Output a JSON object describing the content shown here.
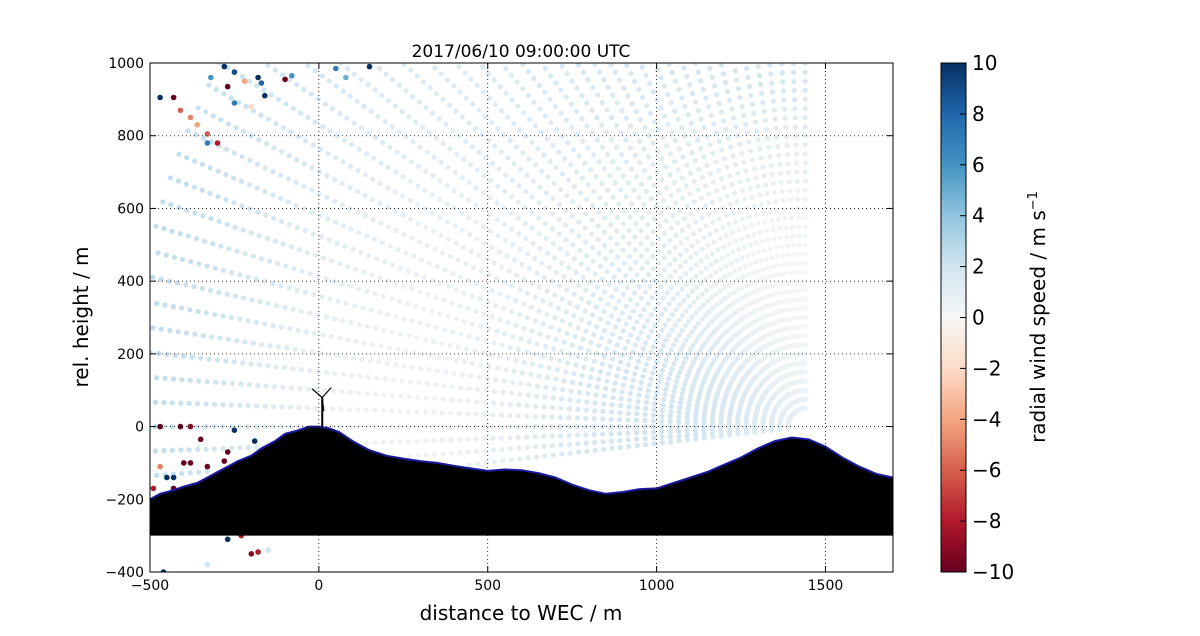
{
  "chart_data": {
    "type": "scatter",
    "title": "2017/06/10 09:00:00 UTC",
    "xlabel": "distance to WEC / m",
    "ylabel": "rel. height / m",
    "xlim": [
      -500,
      1700
    ],
    "ylim": [
      -400,
      1000
    ],
    "xticks": [
      "−500",
      "0",
      "500",
      "1000",
      "1500"
    ],
    "yticks": [
      "−400",
      "−200",
      "0",
      "200",
      "400",
      "600",
      "800",
      "1000"
    ],
    "xtick_values": [
      -500,
      0,
      500,
      1000,
      1500
    ],
    "ytick_values": [
      -400,
      -200,
      0,
      200,
      400,
      600,
      800,
      1000
    ],
    "grid": true,
    "grid_style": "dotted",
    "scan": {
      "description_values": "lidar RHI scan points, radial wind speed in m/s",
      "origin": [
        1440,
        0
      ],
      "range_gate_start": 50,
      "range_gate_step": 25,
      "range_gate_end": 2000,
      "ray_angles_deg": [
        90,
        88,
        86,
        84,
        82,
        80,
        78,
        76,
        74,
        72,
        70,
        68,
        66,
        64,
        62,
        60,
        58,
        56,
        54,
        52,
        50,
        48,
        46,
        44,
        42,
        40,
        38,
        36,
        34,
        32,
        30,
        28,
        26,
        24,
        22,
        20,
        18,
        16,
        14,
        12,
        10,
        8,
        6,
        4,
        2,
        0,
        -2,
        -4,
        -6
      ],
      "typical_speed": 1.5
    },
    "outliers": [
      {
        "x": -470,
        "y": 905,
        "v": 10
      },
      {
        "x": -430,
        "y": 905,
        "v": -10
      },
      {
        "x": -410,
        "y": 870,
        "v": -6
      },
      {
        "x": -380,
        "y": 850,
        "v": -5
      },
      {
        "x": -360,
        "y": 830,
        "v": -4
      },
      {
        "x": -330,
        "y": 805,
        "v": -6
      },
      {
        "x": -300,
        "y": 780,
        "v": -8
      },
      {
        "x": -330,
        "y": 780,
        "v": 7
      },
      {
        "x": -280,
        "y": 990,
        "v": 10
      },
      {
        "x": -250,
        "y": 975,
        "v": 9
      },
      {
        "x": -320,
        "y": 960,
        "v": 6
      },
      {
        "x": -220,
        "y": 950,
        "v": -4
      },
      {
        "x": -270,
        "y": 935,
        "v": -10
      },
      {
        "x": -180,
        "y": 960,
        "v": 10
      },
      {
        "x": -170,
        "y": 945,
        "v": 8
      },
      {
        "x": -100,
        "y": 955,
        "v": -10
      },
      {
        "x": -80,
        "y": 965,
        "v": 6
      },
      {
        "x": 50,
        "y": 985,
        "v": 7
      },
      {
        "x": 80,
        "y": 960,
        "v": 5
      },
      {
        "x": 150,
        "y": 990,
        "v": 10
      },
      {
        "x": -160,
        "y": 910,
        "v": 10
      },
      {
        "x": -250,
        "y": 890,
        "v": 7
      },
      {
        "x": -200,
        "y": 880,
        "v": -2
      },
      {
        "x": -470,
        "y": 0,
        "v": -10
      },
      {
        "x": -410,
        "y": 0,
        "v": -10
      },
      {
        "x": -380,
        "y": 0,
        "v": -9
      },
      {
        "x": -350,
        "y": -35,
        "v": -10
      },
      {
        "x": -250,
        "y": -10,
        "v": 10
      },
      {
        "x": -190,
        "y": -40,
        "v": 10
      },
      {
        "x": -270,
        "y": -70,
        "v": -10
      },
      {
        "x": -280,
        "y": -95,
        "v": -10
      },
      {
        "x": -400,
        "y": -100,
        "v": -10
      },
      {
        "x": -380,
        "y": -100,
        "v": -10
      },
      {
        "x": -330,
        "y": -110,
        "v": -10
      },
      {
        "x": -470,
        "y": -110,
        "v": -5
      },
      {
        "x": -450,
        "y": -140,
        "v": 10
      },
      {
        "x": -430,
        "y": -140,
        "v": 10
      },
      {
        "x": -300,
        "y": -135,
        "v": -10
      },
      {
        "x": -490,
        "y": -170,
        "v": -8
      },
      {
        "x": -430,
        "y": -170,
        "v": -10
      },
      {
        "x": -270,
        "y": -310,
        "v": 10
      },
      {
        "x": -230,
        "y": -300,
        "v": -8
      },
      {
        "x": -200,
        "y": -350,
        "v": -9
      },
      {
        "x": -180,
        "y": -345,
        "v": -8
      },
      {
        "x": -150,
        "y": -340,
        "v": 2
      },
      {
        "x": -330,
        "y": -380,
        "v": 2
      },
      {
        "x": -460,
        "y": -400,
        "v": 10
      }
    ],
    "terrain": {
      "x": [
        -500,
        -470,
        -430,
        -400,
        -360,
        -330,
        -300,
        -270,
        -240,
        -200,
        -170,
        -130,
        -100,
        -60,
        -30,
        0,
        30,
        60,
        100,
        150,
        200,
        250,
        300,
        350,
        400,
        450,
        500,
        550,
        600,
        650,
        700,
        750,
        800,
        850,
        900,
        950,
        1000,
        1050,
        1100,
        1150,
        1200,
        1250,
        1300,
        1350,
        1400,
        1450,
        1500,
        1550,
        1600,
        1650,
        1700
      ],
      "y": [
        -200,
        -185,
        -175,
        -165,
        -155,
        -140,
        -125,
        -110,
        -95,
        -80,
        -60,
        -40,
        -20,
        -10,
        0,
        0,
        -5,
        -15,
        -40,
        -65,
        -80,
        -88,
        -95,
        -100,
        -108,
        -115,
        -122,
        -118,
        -120,
        -128,
        -140,
        -160,
        -175,
        -185,
        -180,
        -172,
        -170,
        -155,
        -140,
        -125,
        -105,
        -85,
        -60,
        -40,
        -30,
        -35,
        -55,
        -85,
        -110,
        -130,
        -140
      ],
      "base": -300,
      "fill_color": "#000000",
      "edge_color": "#1a1aa0"
    },
    "turbine": {
      "x": 10,
      "hub_height": 80,
      "rotor_radius": 40
    },
    "colorbar": {
      "label": "radial wind speed / m s",
      "label_superscript": "−1",
      "vmin": -10,
      "vmax": 10,
      "ticks": [
        "10",
        "8",
        "6",
        "4",
        "2",
        "0",
        "−2",
        "−4",
        "−6",
        "−8",
        "−10"
      ],
      "tick_values": [
        10,
        8,
        6,
        4,
        2,
        0,
        -2,
        -4,
        -6,
        -8,
        -10
      ],
      "colormap": [
        "#67001f",
        "#b2182b",
        "#d6604d",
        "#f4a582",
        "#fddbc7",
        "#f7f7f7",
        "#d1e5f0",
        "#92c5de",
        "#4393c3",
        "#2166ac",
        "#053061"
      ]
    }
  }
}
